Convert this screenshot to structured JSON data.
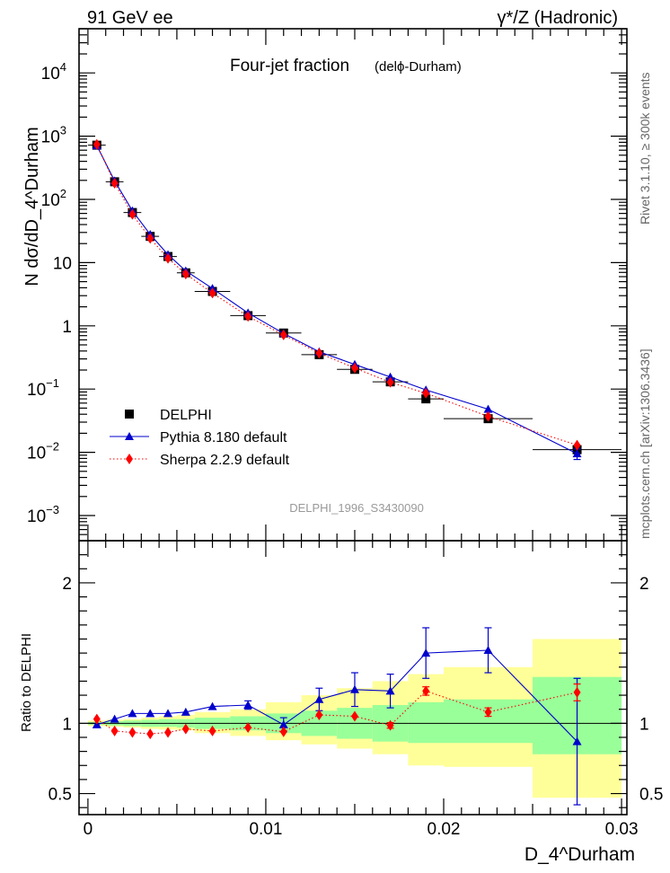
{
  "header": {
    "left": "91 GeV ee",
    "right": "γ*/Z (Hadronic)"
  },
  "side": {
    "rivet": "Rivet 3.1.10, ≥ 300k events",
    "mcplots": "mcplots.cern.ch [arXiv:1306.3436]"
  },
  "chart_data": [
    {
      "type": "scatter",
      "panel": "main",
      "title": "Four-jet fraction",
      "subtitle": "(delϕ-Durham)",
      "watermark": "DELPHI_1996_S3430090",
      "ylabel": "N dσ/dD_4^Durham",
      "yscale": "log",
      "ylim": [
        0.0004,
        50000
      ],
      "xlim": [
        -0.0005,
        0.0303
      ],
      "yticks": [
        {
          "v": 10000,
          "base": "10",
          "exp": "4"
        },
        {
          "v": 1000,
          "base": "10",
          "exp": "3"
        },
        {
          "v": 100,
          "base": "10",
          "exp": "2"
        },
        {
          "v": 10,
          "base": "10",
          "exp": ""
        },
        {
          "v": 1,
          "base": "1",
          "exp": ""
        },
        {
          "v": 0.1,
          "base": "10",
          "exp": "−1"
        },
        {
          "v": 0.01,
          "base": "10",
          "exp": "−2"
        },
        {
          "v": 0.001,
          "base": "10",
          "exp": "−3"
        }
      ],
      "legend_position": "bottom-left",
      "series": [
        {
          "name": "DELPHI",
          "style": "square",
          "color": "#000000",
          "x": [
            0.0005,
            0.0015,
            0.0025,
            0.0035,
            0.0045,
            0.0055,
            0.007,
            0.009,
            0.011,
            0.013,
            0.015,
            0.017,
            0.019,
            0.0225,
            0.0275
          ],
          "xerr": [
            0.0005,
            0.0005,
            0.0005,
            0.0005,
            0.0005,
            0.0005,
            0.001,
            0.001,
            0.001,
            0.001,
            0.001,
            0.001,
            0.001,
            0.0025,
            0.0025
          ],
          "y": [
            720,
            190,
            62,
            26,
            12.5,
            6.9,
            3.5,
            1.45,
            0.77,
            0.35,
            0.205,
            0.13,
            0.07,
            0.034,
            0.011
          ]
        },
        {
          "name": "Pythia 8.180 default",
          "style": "triangle-line",
          "color": "#0000cc",
          "x": [
            0.0005,
            0.0015,
            0.0025,
            0.0035,
            0.0045,
            0.0055,
            0.007,
            0.009,
            0.011,
            0.013,
            0.015,
            0.017,
            0.019,
            0.0225,
            0.0275
          ],
          "y": [
            710,
            196,
            66,
            27.9,
            13.4,
            7.4,
            3.9,
            1.6,
            0.76,
            0.39,
            0.245,
            0.155,
            0.097,
            0.048,
            0.0095
          ],
          "yerr": [
            0,
            0,
            0,
            0,
            0,
            0,
            0,
            0,
            0,
            0,
            0,
            0,
            0,
            0,
            0.0018
          ]
        },
        {
          "name": "Sherpa 2.2.9 default",
          "style": "diamond-dotted",
          "color": "#ff0000",
          "x": [
            0.0005,
            0.0015,
            0.0025,
            0.0035,
            0.0045,
            0.0055,
            0.007,
            0.009,
            0.011,
            0.013,
            0.015,
            0.017,
            0.019,
            0.0225,
            0.0275
          ],
          "y": [
            740,
            180,
            58,
            24.2,
            11.7,
            6.6,
            3.3,
            1.41,
            0.72,
            0.37,
            0.215,
            0.128,
            0.086,
            0.037,
            0.013
          ]
        }
      ]
    },
    {
      "type": "scatter",
      "panel": "ratio",
      "ylabel": "Ratio to DELPHI",
      "xlabel": "D_4^Durham",
      "ylim": [
        0.35,
        2.3
      ],
      "xlim": [
        -0.0005,
        0.0303
      ],
      "yticks": [
        {
          "v": 0.5,
          "label": "0.5"
        },
        {
          "v": 1,
          "label": "1"
        },
        {
          "v": 2,
          "label": "2"
        }
      ],
      "xticks": [
        {
          "v": 0,
          "label": "0"
        },
        {
          "v": 0.01,
          "label": "0.01"
        },
        {
          "v": 0.02,
          "label": "0.02"
        },
        {
          "v": 0.03,
          "label": "0.03"
        }
      ],
      "bands": {
        "edges": [
          0.0,
          0.001,
          0.002,
          0.003,
          0.004,
          0.005,
          0.006,
          0.008,
          0.01,
          0.012,
          0.014,
          0.016,
          0.018,
          0.02,
          0.025,
          0.03
        ],
        "stat_low": [
          0.99,
          0.985,
          0.98,
          0.975,
          0.975,
          0.97,
          0.96,
          0.95,
          0.93,
          0.91,
          0.89,
          0.87,
          0.86,
          0.86,
          0.78
        ],
        "stat_high": [
          1.01,
          1.015,
          1.02,
          1.025,
          1.03,
          1.03,
          1.04,
          1.05,
          1.07,
          1.09,
          1.11,
          1.13,
          1.15,
          1.17,
          1.33
        ],
        "total_low": [
          0.98,
          0.975,
          0.97,
          0.96,
          0.955,
          0.95,
          0.93,
          0.91,
          0.88,
          0.85,
          0.82,
          0.78,
          0.7,
          0.69,
          0.47
        ],
        "total_high": [
          1.02,
          1.025,
          1.03,
          1.04,
          1.05,
          1.06,
          1.08,
          1.1,
          1.15,
          1.2,
          1.25,
          1.3,
          1.35,
          1.4,
          1.6
        ],
        "stat_color": "#99ff99",
        "total_color": "#ffff99"
      },
      "series": [
        {
          "name": "Pythia 8.180 default",
          "style": "triangle-line",
          "color": "#0000cc",
          "x": [
            0.0005,
            0.0015,
            0.0025,
            0.0035,
            0.0045,
            0.0055,
            0.007,
            0.009,
            0.011,
            0.013,
            0.015,
            0.017,
            0.019,
            0.0225,
            0.0275
          ],
          "y": [
            0.99,
            1.03,
            1.07,
            1.07,
            1.07,
            1.08,
            1.12,
            1.13,
            0.99,
            1.17,
            1.24,
            1.23,
            1.5,
            1.52,
            0.87
          ],
          "yerr": [
            0,
            0,
            0,
            0,
            0,
            0,
            0,
            0.03,
            0.05,
            0.08,
            0.12,
            0.12,
            0.18,
            0.16,
            0.45
          ]
        },
        {
          "name": "Sherpa 2.2.9 default",
          "style": "diamond-dotted",
          "color": "#ff0000",
          "x": [
            0.0005,
            0.0015,
            0.0025,
            0.0035,
            0.0045,
            0.0055,
            0.007,
            0.009,
            0.011,
            0.013,
            0.015,
            0.017,
            0.019,
            0.0225,
            0.0275
          ],
          "y": [
            1.03,
            0.945,
            0.935,
            0.925,
            0.935,
            0.96,
            0.945,
            0.97,
            0.94,
            1.06,
            1.05,
            0.985,
            1.23,
            1.08,
            1.22
          ],
          "yerr": [
            0,
            0,
            0,
            0,
            0,
            0,
            0,
            0,
            0,
            0,
            0,
            0.02,
            0.03,
            0.03,
            0.06
          ]
        }
      ]
    }
  ]
}
